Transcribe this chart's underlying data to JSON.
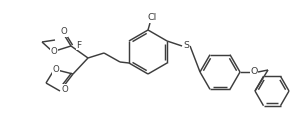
{
  "bg_color": "#ffffff",
  "line_color": "#3d3d3d",
  "lw": 1.05,
  "figsize": [
    2.94,
    1.19
  ],
  "dpi": 100,
  "xlim": [
    0,
    294
  ],
  "ylim": [
    119,
    0
  ],
  "qx": 88,
  "qy": 58,
  "r1cx": 148,
  "r1cy": 52,
  "r1r": 22,
  "r2cx": 220,
  "r2cy": 72,
  "r2r": 20,
  "r3cx": 272,
  "r3cy": 91,
  "r3r": 17
}
